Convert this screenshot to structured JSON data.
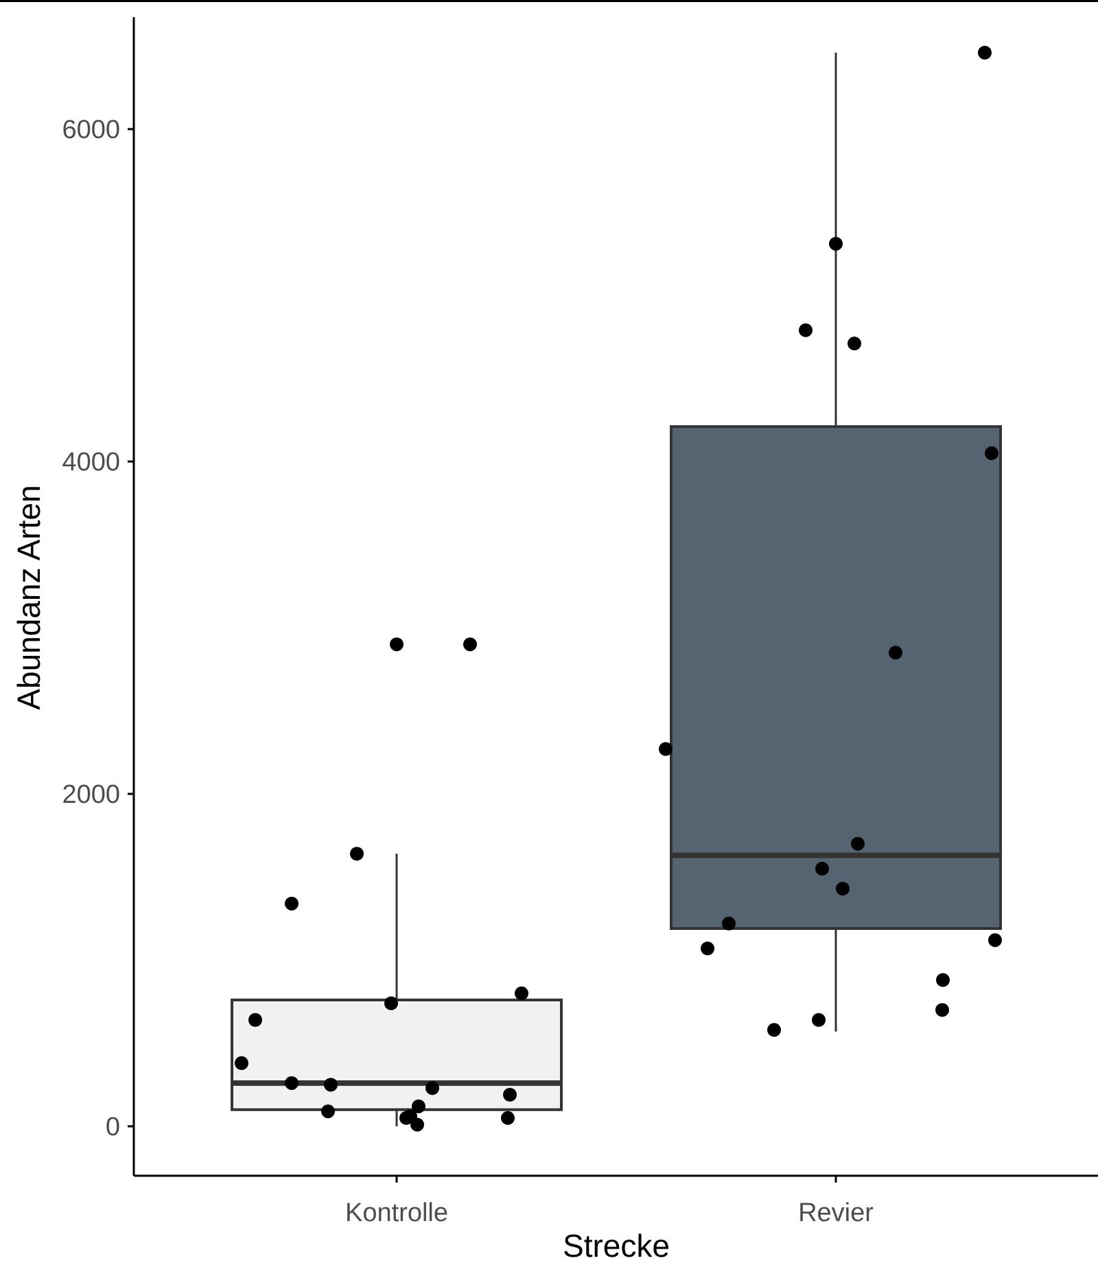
{
  "chart_data": {
    "type": "boxplot",
    "xlabel": "Strecke",
    "ylabel": "Abundanz Arten",
    "ylim": [
      -300,
      6700
    ],
    "yticks": [
      0,
      2000,
      4000,
      6000
    ],
    "ytick_labels": [
      "0",
      "2000",
      "4000",
      "6000"
    ],
    "categories": [
      "Kontrolle",
      "Revier"
    ],
    "grid": false,
    "boxes": [
      {
        "category": "Kontrolle",
        "fill": "#eff1f2",
        "whisker_low": 0,
        "q1": 100,
        "median": 260,
        "q3": 760,
        "whisker_high": 1640
      },
      {
        "category": "Revier",
        "fill": "#566472",
        "whisker_low": 570,
        "q1": 1190,
        "median": 1630,
        "q3": 4210,
        "whisker_high": 6460
      }
    ],
    "points": [
      {
        "category": "Kontrolle",
        "values": [
          2900,
          2900,
          1640,
          1340,
          740,
          800,
          640,
          380,
          260,
          250,
          230,
          190,
          120,
          90,
          60,
          50,
          50,
          10
        ]
      },
      {
        "category": "Revier",
        "values": [
          6460,
          5310,
          4710,
          4790,
          4050,
          2850,
          2270,
          1700,
          1550,
          1430,
          1220,
          1120,
          1070,
          880,
          640,
          580,
          700
        ]
      }
    ],
    "colors": {
      "point": "#000000",
      "box_outline": "#333333",
      "axis": "#000000"
    }
  }
}
